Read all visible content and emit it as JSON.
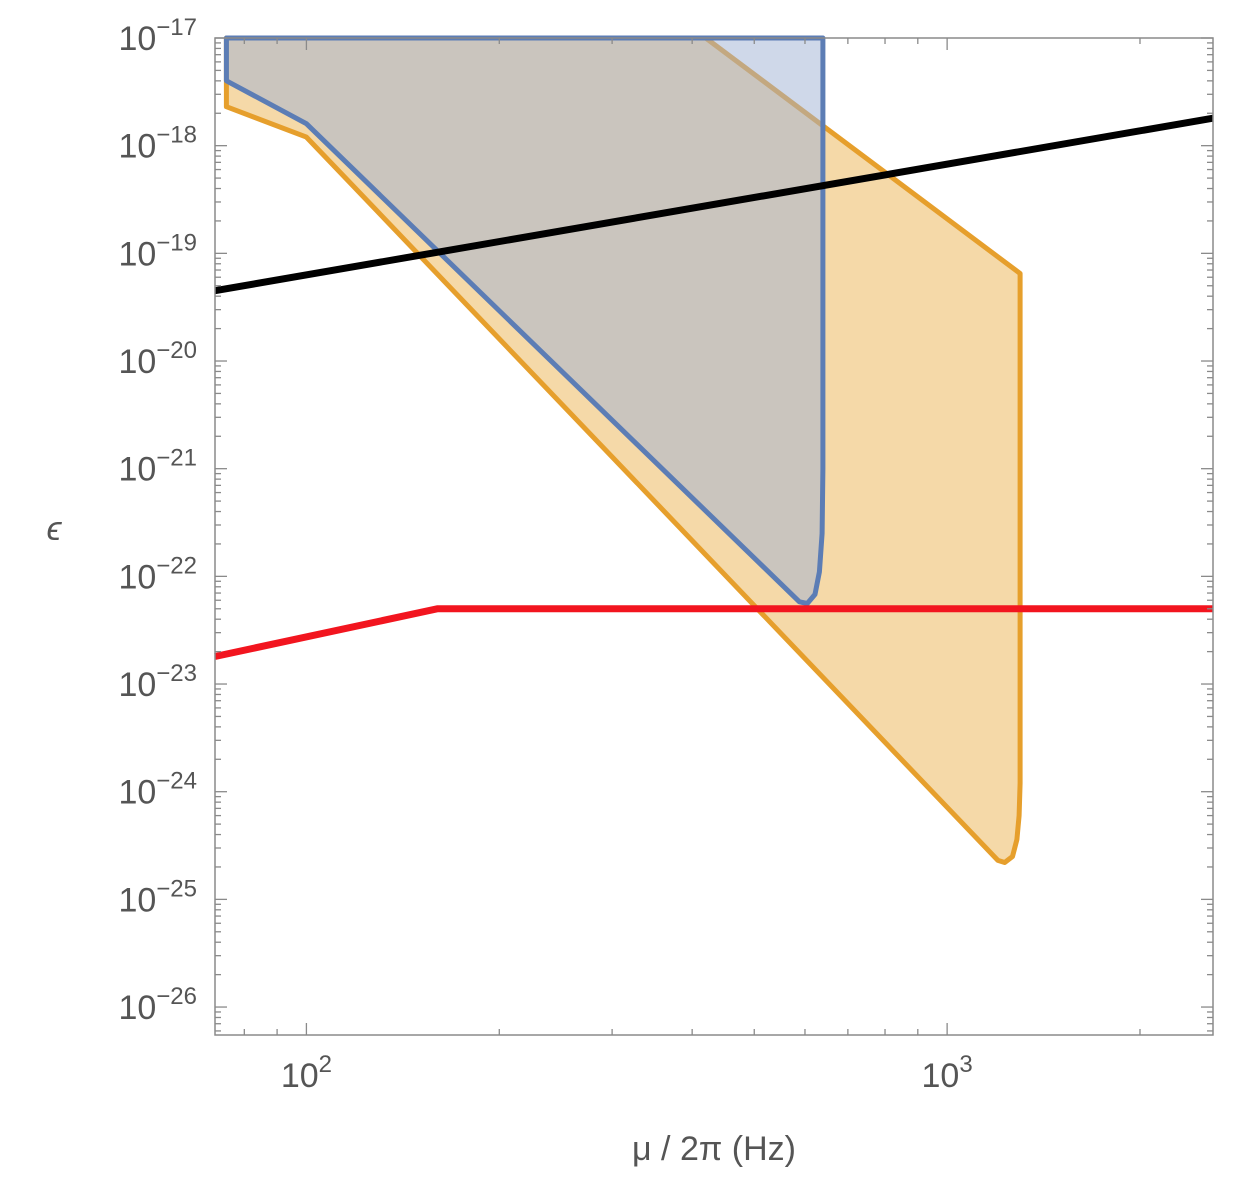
{
  "chart_data": {
    "type": "area",
    "xlabel": "μ / 2π (Hz)",
    "ylabel": "ϵ",
    "x_scale": "log",
    "y_scale": "log",
    "xlim": [
      72,
      2600
    ],
    "ylim": [
      5.5e-27,
      1e-17
    ],
    "grid": false,
    "x_ticks": [
      {
        "value": 100,
        "base": "10",
        "exp": "2"
      },
      {
        "value": 1000,
        "base": "10",
        "exp": "3"
      }
    ],
    "y_ticks": [
      {
        "value": 1e-17,
        "base": "10",
        "exp": "−17"
      },
      {
        "value": 1e-18,
        "base": "10",
        "exp": "−18"
      },
      {
        "value": 1e-19,
        "base": "10",
        "exp": "−19"
      },
      {
        "value": 1e-20,
        "base": "10",
        "exp": "−20"
      },
      {
        "value": 1e-21,
        "base": "10",
        "exp": "−21"
      },
      {
        "value": 1e-22,
        "base": "10",
        "exp": "−22"
      },
      {
        "value": 1e-23,
        "base": "10",
        "exp": "−23"
      },
      {
        "value": 1e-24,
        "base": "10",
        "exp": "−24"
      },
      {
        "value": 1e-25,
        "base": "10",
        "exp": "−25"
      },
      {
        "value": 1e-26,
        "base": "10",
        "exp": "−26"
      }
    ],
    "series": [
      {
        "kind": "region",
        "color": "#E69F2C",
        "fill": "#F5D9A8",
        "points": [
          [
            75,
            2.3e-18
          ],
          [
            75,
            1e-17
          ],
          [
            420,
            1e-17
          ],
          [
            1300,
            6.5e-20
          ],
          [
            1300,
            1.2e-24
          ],
          [
            1295,
            6e-25
          ],
          [
            1285,
            3.6e-25
          ],
          [
            1265,
            2.5e-25
          ],
          [
            1230,
            2.2e-25
          ],
          [
            1200,
            2.3e-25
          ],
          [
            100,
            1.2e-18
          ],
          [
            75,
            2.3e-18
          ]
        ]
      },
      {
        "kind": "region",
        "color": "#5C7DB5",
        "fill": "#9FB2D4",
        "fill_opacity": 0.5,
        "points": [
          [
            75,
            4e-18
          ],
          [
            75,
            1e-17
          ],
          [
            640,
            1e-17
          ],
          [
            640,
            1e-21
          ],
          [
            638,
            2.5e-22
          ],
          [
            632,
            1.1e-22
          ],
          [
            622,
            6.8e-23
          ],
          [
            605,
            5.6e-23
          ],
          [
            588,
            5.8e-23
          ],
          [
            100,
            1.6e-18
          ],
          [
            75,
            4e-18
          ]
        ]
      },
      {
        "kind": "line",
        "color": "#000000",
        "points": [
          [
            72,
            4.5e-20
          ],
          [
            2600,
            1.8e-18
          ]
        ]
      },
      {
        "kind": "line",
        "color": "#F2151F",
        "points": [
          [
            72,
            1.8e-23
          ],
          [
            160,
            5e-23
          ],
          [
            2600,
            5e-23
          ]
        ]
      }
    ]
  }
}
